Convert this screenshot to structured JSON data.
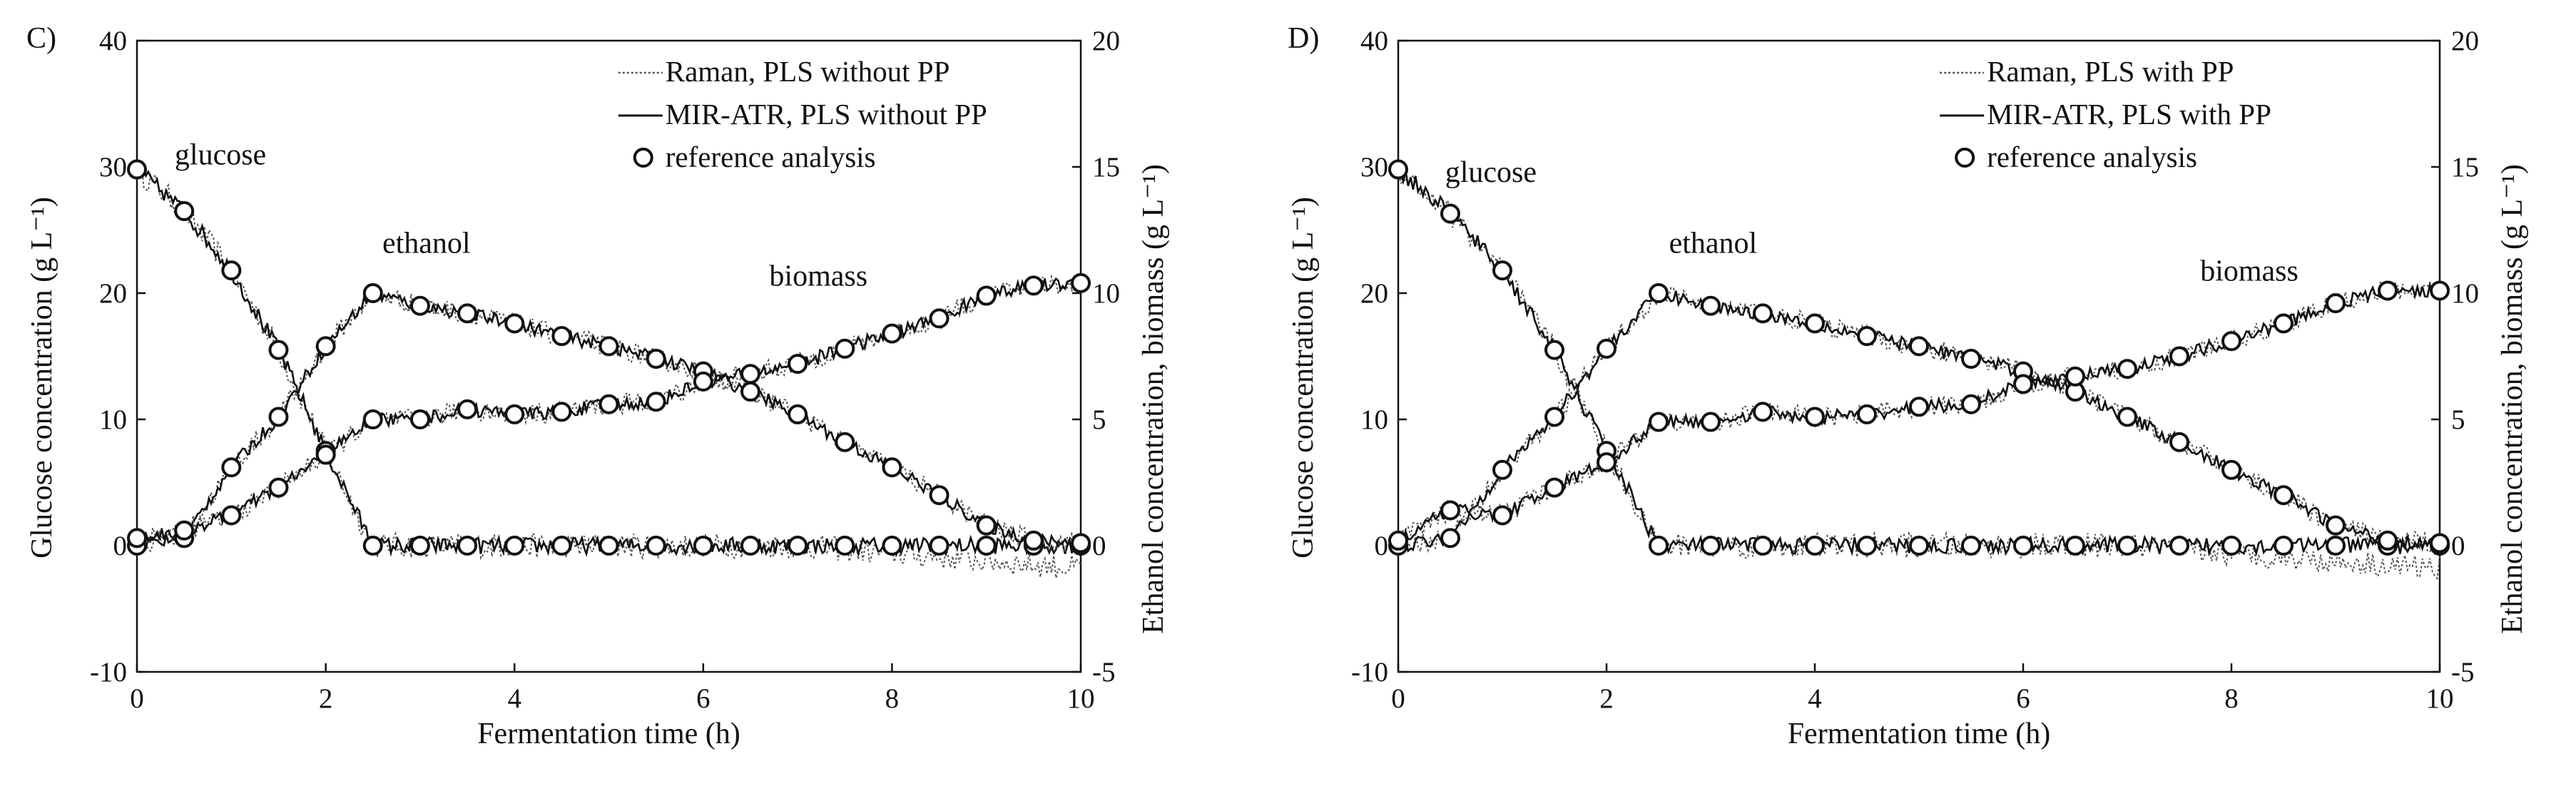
{
  "colors": {
    "ink": "#111111",
    "raman": "#555555",
    "marker_fill": "#ffffff"
  },
  "chart_data": [
    {
      "type": "line",
      "panel_label": "C)",
      "xlabel": "Fermentation time (h)",
      "ylabel_left": "Glucose concentration (g L⁻¹)",
      "ylabel_right": "Ethanol concentration, biomass (g L⁻¹)",
      "xlim": [
        0,
        10
      ],
      "ylim_left": [
        -10,
        40
      ],
      "ylim_right": [
        -5,
        20
      ],
      "x_ticks": [
        "0",
        "2",
        "4",
        "6",
        "8",
        "10"
      ],
      "y_left_ticks": [
        "-10",
        "0",
        "10",
        "20",
        "30",
        "40"
      ],
      "y_right_ticks": [
        "-5",
        "0",
        "5",
        "10",
        "15",
        "20"
      ],
      "legend": {
        "raman": "Raman, PLS without PP",
        "mir": "MIR-ATR, PLS without PP",
        "reference": "reference analysis"
      },
      "annotations": {
        "glucose": "glucose",
        "ethanol": "ethanol",
        "biomass": "biomass"
      },
      "series": [
        {
          "name": "glucose",
          "axis": "left",
          "x": [
            0,
            0.5,
            1,
            1.5,
            2,
            2.5,
            3,
            3.5,
            4,
            4.5,
            5,
            5.5,
            6,
            6.5,
            7,
            7.5,
            8,
            8.5,
            9,
            9.5,
            10
          ],
          "values": [
            29.8,
            26.5,
            21.8,
            15.5,
            7.5,
            0,
            0,
            0,
            0,
            0,
            0,
            0,
            0,
            0,
            0,
            0,
            0,
            0,
            0,
            0,
            0
          ]
        },
        {
          "name": "ethanol",
          "axis": "right",
          "x": [
            0,
            0.5,
            1,
            1.5,
            2,
            2.5,
            3,
            3.5,
            4,
            4.5,
            5,
            5.5,
            6,
            6.5,
            7,
            7.5,
            8,
            8.5,
            9,
            9.5,
            10
          ],
          "values": [
            0,
            0.3,
            3.1,
            5.1,
            7.9,
            10,
            9.5,
            9.2,
            8.8,
            8.3,
            7.9,
            7.4,
            6.9,
            6.1,
            5.2,
            4.1,
            3.1,
            2.0,
            0.8,
            0.2,
            0.1
          ]
        },
        {
          "name": "biomass",
          "axis": "right",
          "x": [
            0,
            0.5,
            1,
            1.5,
            2,
            2.5,
            3,
            3.5,
            4,
            4.5,
            5,
            5.5,
            6,
            6.5,
            7,
            7.5,
            8,
            8.5,
            9,
            9.5,
            10
          ],
          "values": [
            0.3,
            0.6,
            1.2,
            2.3,
            3.6,
            5.0,
            5.0,
            5.4,
            5.2,
            5.3,
            5.6,
            5.7,
            6.5,
            6.8,
            7.2,
            7.8,
            8.4,
            9.0,
            9.9,
            10.3,
            10.4
          ]
        }
      ]
    },
    {
      "type": "line",
      "panel_label": "D)",
      "xlabel": "Fermentation time (h)",
      "ylabel_left": "Glucose concentration (g L⁻¹)",
      "ylabel_right": "Ethanol concentration, biomass (g L⁻¹)",
      "xlim": [
        0,
        10
      ],
      "ylim_left": [
        -10,
        40
      ],
      "ylim_right": [
        -5,
        20
      ],
      "x_ticks": [
        "0",
        "2",
        "4",
        "6",
        "8",
        "10"
      ],
      "y_left_ticks": [
        "-10",
        "0",
        "10",
        "20",
        "30",
        "40"
      ],
      "y_right_ticks": [
        "-5",
        "0",
        "5",
        "10",
        "15",
        "20"
      ],
      "legend": {
        "raman": "Raman, PLS with PP",
        "mir": "MIR-ATR, PLS with PP",
        "reference": "reference analysis"
      },
      "annotations": {
        "glucose": "glucose",
        "ethanol": "ethanol",
        "biomass": "biomass"
      },
      "series": [
        {
          "name": "glucose",
          "axis": "left",
          "x": [
            0,
            0.5,
            1,
            1.5,
            2,
            2.5,
            3,
            3.5,
            4,
            4.5,
            5,
            5.5,
            6,
            6.5,
            7,
            7.5,
            8,
            8.5,
            9,
            9.5,
            10
          ],
          "values": [
            29.8,
            26.3,
            21.8,
            15.5,
            7.5,
            0,
            0,
            0,
            0,
            0,
            0,
            0,
            0,
            0,
            0,
            0,
            0,
            0,
            0,
            0,
            0
          ]
        },
        {
          "name": "ethanol",
          "axis": "right",
          "x": [
            0,
            0.5,
            1,
            1.5,
            2,
            2.5,
            3,
            3.5,
            4,
            4.5,
            5,
            5.5,
            6,
            6.5,
            7,
            7.5,
            8,
            8.5,
            9,
            9.5,
            10
          ],
          "values": [
            0,
            0.3,
            3.0,
            5.1,
            7.8,
            10,
            9.5,
            9.2,
            8.8,
            8.3,
            7.9,
            7.4,
            6.9,
            6.1,
            5.1,
            4.1,
            3.0,
            2.0,
            0.8,
            0.2,
            0.1
          ]
        },
        {
          "name": "biomass",
          "axis": "right",
          "x": [
            0,
            0.5,
            1,
            1.5,
            2,
            2.5,
            3,
            3.5,
            4,
            4.5,
            5,
            5.5,
            6,
            6.5,
            7,
            7.5,
            8,
            8.5,
            9,
            9.5,
            10
          ],
          "values": [
            0.2,
            1.4,
            1.2,
            2.3,
            3.3,
            4.9,
            4.9,
            5.3,
            5.1,
            5.2,
            5.5,
            5.6,
            6.4,
            6.7,
            7.0,
            7.5,
            8.1,
            8.8,
            9.6,
            10.1,
            10.1
          ]
        }
      ]
    }
  ]
}
